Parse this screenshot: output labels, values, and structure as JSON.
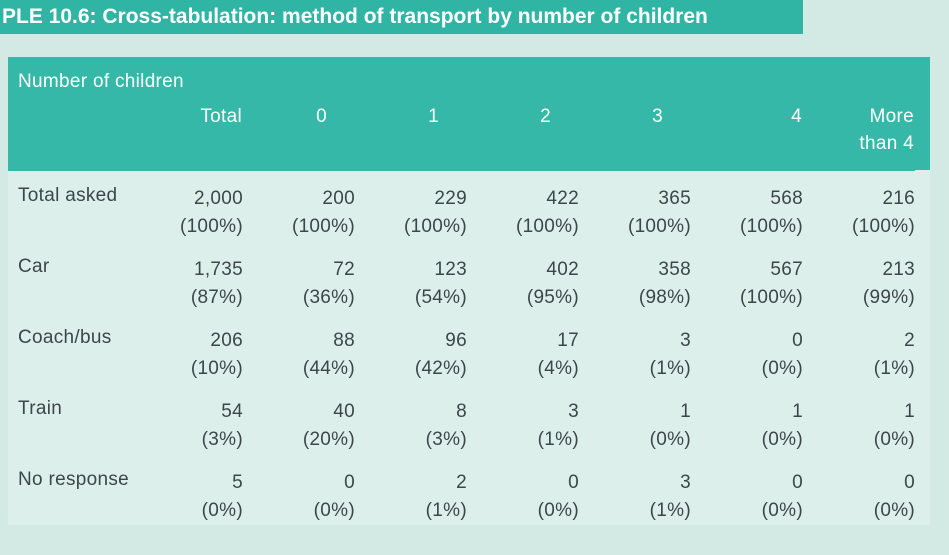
{
  "title": {
    "text": "PLE 10.6: Cross-tabulation: method of transport by number of children"
  },
  "colors": {
    "teal_accent": "#35b8a8",
    "title_bar_teal": "#30b4a3",
    "page_background": "#d3e9e4",
    "table_background": "#dcefea",
    "header_text": "#ffffff",
    "body_text": "#3c4747"
  },
  "table": {
    "header_group_label": "Number of children",
    "columns": [
      "Total",
      "0",
      "1",
      "2",
      "3",
      "4",
      "More than 4"
    ],
    "rows": [
      {
        "label": "Total asked",
        "values": [
          "2,000",
          "200",
          "229",
          "422",
          "365",
          "568",
          "216"
        ],
        "percents": [
          "(100%)",
          "(100%)",
          "(100%)",
          "(100%)",
          "(100%)",
          "(100%)",
          "(100%)"
        ]
      },
      {
        "label": "Car",
        "values": [
          "1,735",
          "72",
          "123",
          "402",
          "358",
          "567",
          "213"
        ],
        "percents": [
          "(87%)",
          "(36%)",
          "(54%)",
          "(95%)",
          "(98%)",
          "(100%)",
          "(99%)"
        ]
      },
      {
        "label": "Coach/bus",
        "values": [
          "206",
          "88",
          "96",
          "17",
          "3",
          "0",
          "2"
        ],
        "percents": [
          "(10%)",
          "(44%)",
          "(42%)",
          "(4%)",
          "(1%)",
          "(0%)",
          "(1%)"
        ]
      },
      {
        "label": "Train",
        "values": [
          "54",
          "40",
          "8",
          "3",
          "1",
          "1",
          "1"
        ],
        "percents": [
          "(3%)",
          "(20%)",
          "(3%)",
          "(1%)",
          "(0%)",
          "(0%)",
          "(0%)"
        ]
      },
      {
        "label": "No response",
        "values": [
          "5",
          "0",
          "2",
          "0",
          "3",
          "0",
          "0"
        ],
        "percents": [
          "(0%)",
          "(0%)",
          "(1%)",
          "(0%)",
          "(1%)",
          "(0%)",
          "(0%)"
        ]
      }
    ]
  }
}
